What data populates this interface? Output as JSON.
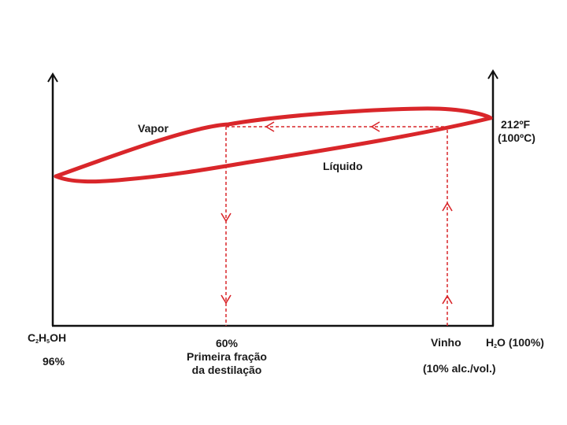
{
  "colors": {
    "curve": "#d9262a",
    "axis": "#111111",
    "text": "#1a1a1a"
  },
  "labels": {
    "vapor": "Vapor",
    "liquido": "Líquido",
    "temp_f": "212ºF",
    "temp_c": "(100ºC)",
    "ethanol_formula": {
      "c": "C",
      "sub1": "2",
      "h": "H",
      "sub2": "5",
      "oh": "OH"
    },
    "ethanol_pct": "96%",
    "first_fraction": {
      "pct": "60%",
      "line1": "Primeira fração",
      "line2": "da destilação"
    },
    "wine": "Vinho",
    "wine_pct": "(10% alc./vol.)",
    "water_formula": {
      "h": "H",
      "sub": "2",
      "o": "O",
      "pct": "(100%)"
    }
  }
}
